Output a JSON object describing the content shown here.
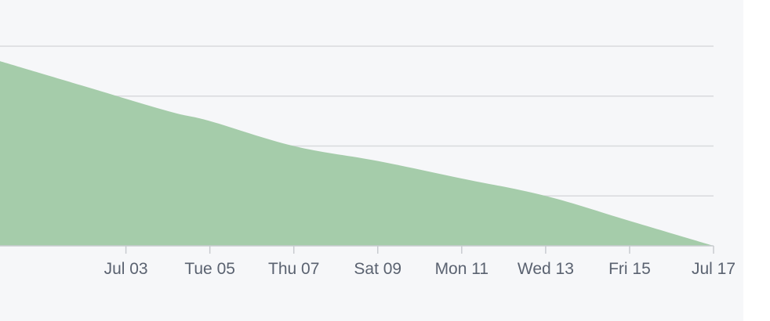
{
  "chart_data": {
    "type": "area",
    "title": "",
    "xlabel": "",
    "ylabel": "",
    "grid": true,
    "legend": "none",
    "x": [
      "2022-07-02",
      "2022-07-04",
      "2022-07-05",
      "2022-07-07",
      "2022-07-09",
      "2022-07-11",
      "2022-07-13",
      "2022-07-15",
      "2022-07-17"
    ],
    "series": [
      {
        "values": [
          3.2,
          2.7,
          2.5,
          2.0,
          1.7,
          1.35,
          1.0,
          0.5,
          0.0
        ]
      }
    ],
    "xlim": [
      "2022-06-30",
      "2022-07-17"
    ],
    "ylim": [
      0,
      4
    ],
    "yticks": [
      0,
      1,
      2,
      3,
      4
    ],
    "xticks": [
      {
        "date": "2022-07-03",
        "label": "Jul 03"
      },
      {
        "date": "2022-07-05",
        "label": "Tue 05"
      },
      {
        "date": "2022-07-07",
        "label": "Thu 07"
      },
      {
        "date": "2022-07-09",
        "label": "Sat 09"
      },
      {
        "date": "2022-07-11",
        "label": "Mon 11"
      },
      {
        "date": "2022-07-13",
        "label": "Wed 13"
      },
      {
        "date": "2022-07-15",
        "label": "Fri 15"
      },
      {
        "date": "2022-07-17",
        "label": "Jul 17"
      }
    ],
    "colors": {
      "area": "#a5ccaa",
      "grid": "#d8dadd",
      "axis": "#c8cbd0",
      "tick_text": "#5a6270",
      "background": "#f6f7f9"
    }
  }
}
